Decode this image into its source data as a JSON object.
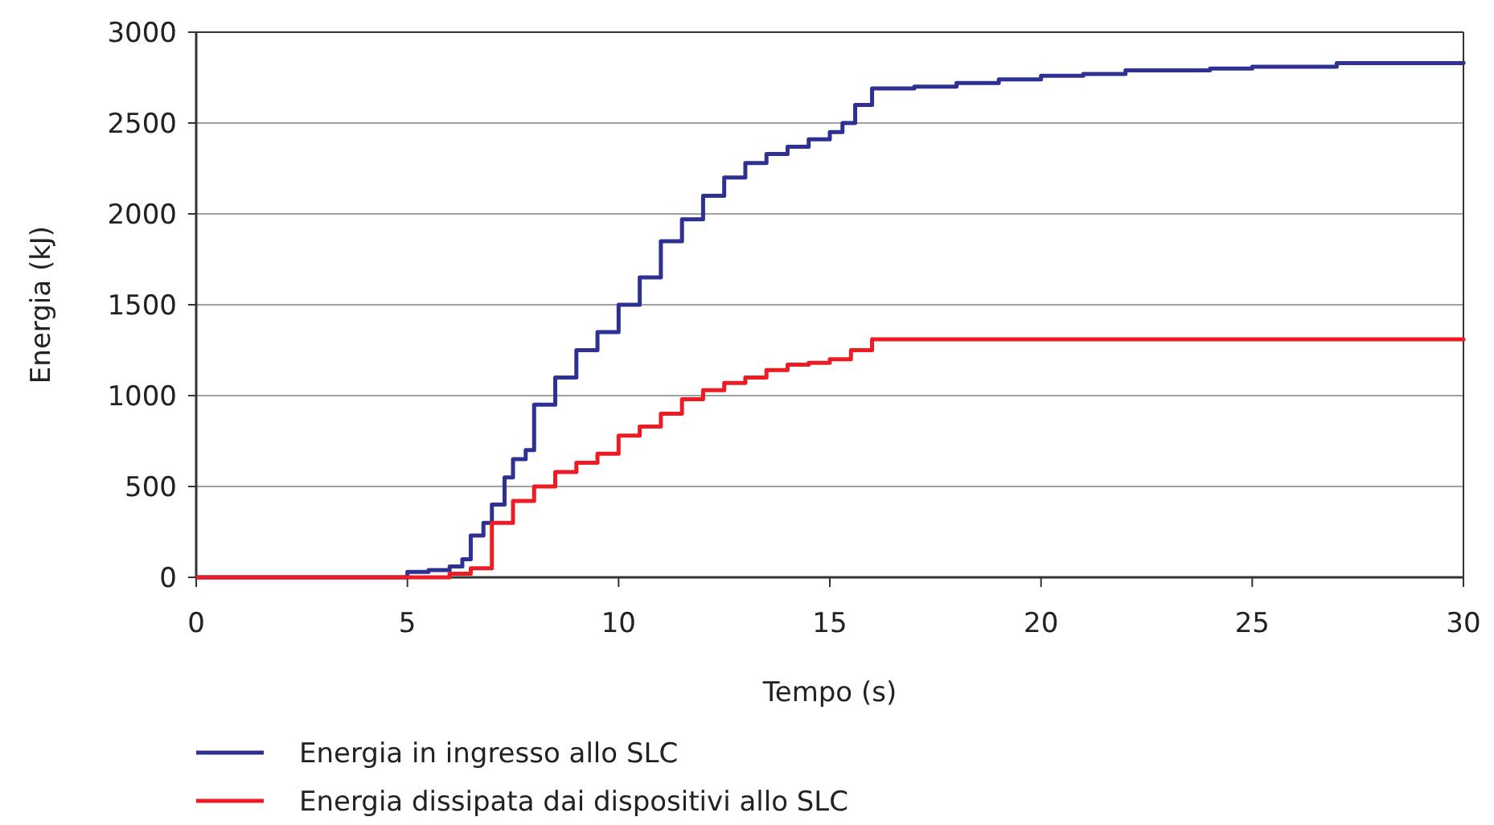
{
  "chart_data": {
    "type": "step",
    "xlabel": "Tempo (s)",
    "ylabel": "Energia (kJ)",
    "xlim": [
      0,
      30
    ],
    "ylim": [
      0,
      3000
    ],
    "xticks": [
      0,
      5,
      10,
      15,
      20,
      25,
      30
    ],
    "yticks": [
      0,
      500,
      1000,
      1500,
      2000,
      2500,
      3000
    ],
    "grid": "y",
    "legend": "bottom",
    "series": [
      {
        "name": "Energia in ingresso allo SLC",
        "color": "#2e3192",
        "x": [
          0,
          4.8,
          5,
          5.5,
          6,
          6.3,
          6.5,
          6.8,
          7,
          7.3,
          7.5,
          7.8,
          8,
          8.5,
          9,
          9.5,
          10,
          10.5,
          11,
          11.5,
          12,
          12.5,
          13,
          13.5,
          14,
          14.5,
          15,
          15.3,
          15.6,
          16,
          17,
          18,
          19,
          20,
          21,
          22,
          23,
          24,
          25,
          26,
          27,
          28,
          29,
          30
        ],
        "values": [
          0,
          0,
          30,
          40,
          60,
          100,
          230,
          300,
          400,
          550,
          650,
          700,
          950,
          1100,
          1250,
          1350,
          1500,
          1650,
          1850,
          1970,
          2100,
          2200,
          2280,
          2330,
          2370,
          2410,
          2450,
          2500,
          2600,
          2690,
          2700,
          2720,
          2740,
          2760,
          2770,
          2790,
          2790,
          2800,
          2810,
          2810,
          2830,
          2830,
          2830,
          2840
        ]
      },
      {
        "name": "Energia dissipata dai dispositivi allo SLC",
        "color": "#ed1c24",
        "x": [
          0,
          5.8,
          6,
          6.5,
          7,
          7.5,
          8,
          8.5,
          9,
          9.5,
          10,
          10.5,
          11,
          11.5,
          12,
          12.5,
          13,
          13.5,
          14,
          14.5,
          15,
          15.5,
          16,
          17,
          18,
          19,
          20,
          22,
          24,
          26,
          28,
          30
        ],
        "values": [
          0,
          0,
          20,
          50,
          300,
          420,
          500,
          580,
          630,
          680,
          780,
          830,
          900,
          980,
          1030,
          1070,
          1100,
          1140,
          1170,
          1180,
          1200,
          1250,
          1310,
          1310,
          1310,
          1310,
          1310,
          1310,
          1310,
          1310,
          1310,
          1300
        ]
      }
    ]
  }
}
